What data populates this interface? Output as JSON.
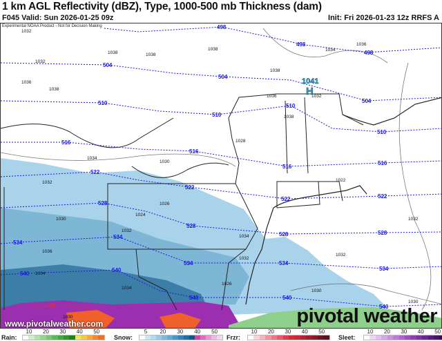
{
  "header": {
    "title": "1 km AGL Reflectivity (dBZ), Type, 1000-500 mb Thickness (dam)",
    "valid": "F045 Valid: Sun 2026-01-25 09z",
    "init": "Init: Fri 2026-01-23 12z RRFS A"
  },
  "map": {
    "disclaimer": "Experimental NOAA Product - Not for Decision Making",
    "high": {
      "letter": "H",
      "value": "1041"
    },
    "thickness_labels": [
      "498",
      "504",
      "510",
      "516",
      "522",
      "528",
      "534",
      "540",
      "546"
    ],
    "pressure_labels": [
      "1032",
      "1032",
      "1036",
      "1038",
      "1038",
      "1038",
      "1038",
      "1038",
      "1036",
      "1034",
      "1038",
      "1032",
      "1036",
      "1030",
      "1028",
      "1034",
      "1032",
      "1030",
      "1026",
      "1024",
      "1032",
      "1036",
      "1034",
      "1034",
      "1034",
      "1032",
      "1032",
      "1032",
      "1022",
      "1026",
      "1030",
      "1030",
      "1030"
    ],
    "colors": {
      "thickness": "#1a1adf",
      "snow_light": "#a9d3ea",
      "snow_mid": "#7eb6d6",
      "snow_dark": "#3d7ea8",
      "sleet": "#9b2fb0",
      "rain_heavy": "#f0602a",
      "rain_light": "#8fcf8c"
    }
  },
  "watermark": {
    "url": "www.pivotalweather.com",
    "brand": "pivotal weather"
  },
  "legend": [
    {
      "label": "Rain:",
      "ticks": [
        "10",
        "20",
        "30",
        "40",
        "50"
      ],
      "colors": [
        "#ffffff",
        "#cfeccb",
        "#b3e0ad",
        "#97d48f",
        "#7bc672",
        "#5fb857",
        "#44a83e",
        "#2e962a",
        "#1d8219",
        "#f2e45a",
        "#f5c84a",
        "#f5a83e",
        "#f18a33",
        "#f06e2b"
      ]
    },
    {
      "label": "Snow:",
      "ticks": [
        "5",
        "20",
        "30",
        "40",
        "50"
      ],
      "colors": [
        "#ffffff",
        "#cde6f4",
        "#b4d8ee",
        "#9ac9e5",
        "#80b9dc",
        "#66a8d1",
        "#4d95c4",
        "#3682b5",
        "#216ea3",
        "#10578a",
        "#c94aa8",
        "#dd6fc0",
        "#e895d2",
        "#f0b7e0",
        "#f6d6ee"
      ]
    },
    {
      "label": "Frzr:",
      "ticks": [
        "10",
        "20",
        "30",
        "40",
        "50"
      ],
      "colors": [
        "#ffffff",
        "#f8d3d8",
        "#f2b4bd",
        "#ed96a2",
        "#e87886",
        "#e35a6b",
        "#de3c50",
        "#d32f2f",
        "#c42a3a",
        "#b02535",
        "#9a2030",
        "#851b2b",
        "#6f1626",
        "#5a1220"
      ]
    },
    {
      "label": "Sleet:",
      "ticks": [
        "10",
        "20",
        "30",
        "40",
        "50"
      ],
      "colors": [
        "#ffffff",
        "#eed7f3",
        "#e2c0ec",
        "#d6a9e4",
        "#ca92dc",
        "#be7bd4",
        "#b264cb",
        "#a24fbe",
        "#9140b0",
        "#7f33a0",
        "#6d278f",
        "#5b1d7c",
        "#4a1468",
        "#3a0d55"
      ]
    }
  ]
}
